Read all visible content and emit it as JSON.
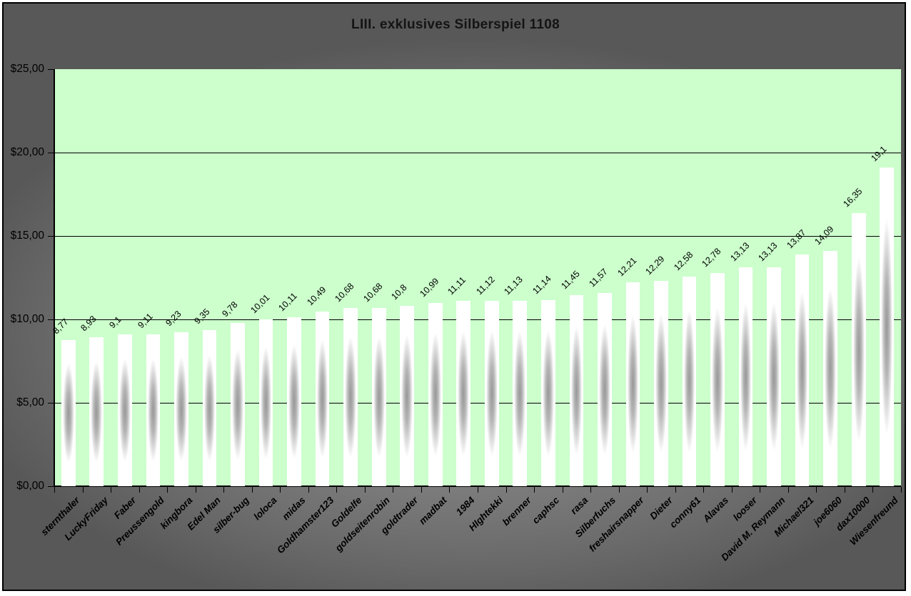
{
  "window": {
    "kind": "spreadsheet-chart-image",
    "frame_border_color": "#000000",
    "outer_edge_color": "#ffffff"
  },
  "colors": {
    "chart_background_gray_center": "#909090",
    "chart_background_gray_edge": "#585858",
    "plot_background": "#ccffcc",
    "gridline": "#000000",
    "axis": "#000000",
    "bar_edge": "#ffffff",
    "bar_center": "#989898",
    "text": "#000000",
    "title_text": "#141414"
  },
  "chart_data": {
    "type": "bar",
    "title": "LIII. exklusives Silberspiel 1108",
    "xlabel": "",
    "ylabel": "",
    "ylim": [
      0,
      25
    ],
    "y_step": 5,
    "grid": true,
    "legend": "none",
    "currency_symbol": "$",
    "decimal_separator": ",",
    "y_tick_labels": [
      "$25,00",
      "$20,00",
      "$15,00",
      "$10,00",
      "$5,00",
      "$0,00"
    ],
    "categories": [
      "sternthaler",
      "LuckyFriday",
      "Faber",
      "Preussengold",
      "kingbora",
      "Edel Man",
      "silber-bug",
      "loloca",
      "midas",
      "Goldhamster123",
      "Goldelfe",
      "goldseitenrobin",
      "goldtrader",
      "madbat",
      "1984",
      "HIghtekki",
      "brenner",
      "caphsc",
      "rasa",
      "Silberfuchs",
      "freshairsnapper",
      "Dieter",
      "conny61",
      "Alavas",
      "looser",
      "David M. Reymann",
      "Michael321",
      "joe6060",
      "dax10000",
      "Wiesenfreund"
    ],
    "values": [
      8.77,
      8.93,
      9.1,
      9.11,
      9.23,
      9.35,
      9.78,
      10.01,
      10.11,
      10.49,
      10.68,
      10.68,
      10.8,
      10.99,
      11.11,
      11.12,
      11.13,
      11.14,
      11.45,
      11.57,
      12.21,
      12.29,
      12.58,
      12.78,
      13.13,
      13.13,
      13.87,
      14.09,
      16.35,
      19.1
    ],
    "value_labels": [
      "8,77",
      "8,93",
      "9,1",
      "9,11",
      "9,23",
      "9,35",
      "9,78",
      "10,01",
      "10,11",
      "10,49",
      "10,68",
      "10,68",
      "10,8",
      "10,99",
      "11,11",
      "11,12",
      "11,13",
      "11,14",
      "11,45",
      "11,57",
      "12,21",
      "12,29",
      "12,58",
      "12,78",
      "13,13",
      "13,13",
      "13,87",
      "14,09",
      "16,35",
      "19,1"
    ]
  }
}
